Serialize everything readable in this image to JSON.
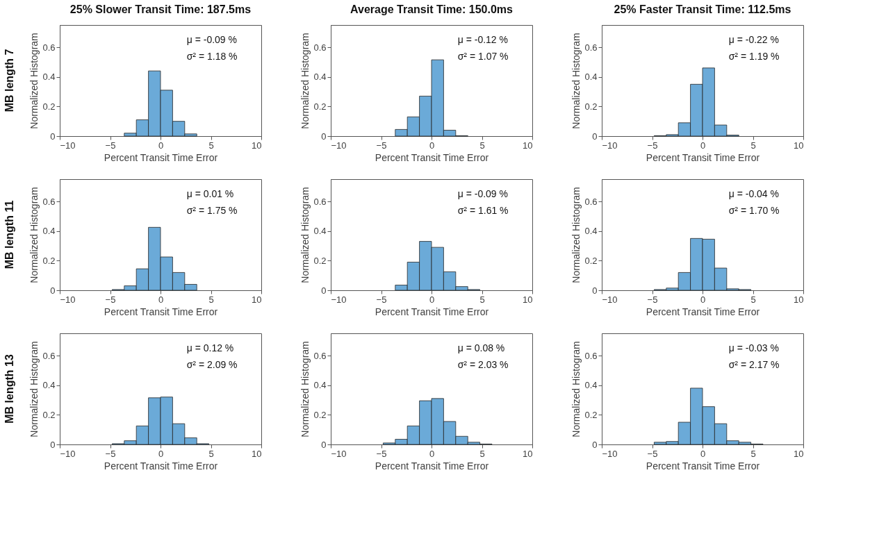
{
  "chart_data": [
    {
      "type": "histogram",
      "title": "25% Slower Transit Time: 187.5ms",
      "xlabel": "Percent Transit Time Error",
      "ylabel": "Normalized Histogram",
      "annotations": [
        "μ = -0.09 %",
        "σ² = 1.18 %",
        "MB length 7"
      ],
      "bins": [
        -3.6,
        -2.4,
        -1.2,
        0,
        1.2,
        2.4,
        3.6
      ],
      "values": [
        0.02,
        0.11,
        0.44,
        0.31,
        0.1,
        0.015
      ],
      "color": "#6baad8",
      "xlim": [
        -10,
        10
      ],
      "ylim": [
        0,
        0.75
      ],
      "xticks": [
        -10,
        -5,
        0,
        5,
        10
      ],
      "yticks": [
        0,
        0.2,
        0.4,
        0.6
      ]
    },
    {
      "type": "histogram",
      "title": "Average Transit Time: 150.0ms",
      "xlabel": "Percent Transit Time Error",
      "ylabel": "Normalized Histogram",
      "annotations": [
        "μ = -0.12 %",
        "σ² = 1.07 %"
      ],
      "bins": [
        -3.6,
        -2.4,
        -1.2,
        0,
        1.2,
        2.4,
        3.6
      ],
      "values": [
        0.045,
        0.13,
        0.27,
        0.515,
        0.04,
        0.003
      ],
      "color": "#6baad8",
      "xlim": [
        -10,
        10
      ],
      "ylim": [
        0,
        0.75
      ],
      "xticks": [
        -10,
        -5,
        0,
        5,
        10
      ],
      "yticks": [
        0,
        0.2,
        0.4,
        0.6
      ]
    },
    {
      "type": "histogram",
      "title": "25% Faster Transit Time: 112.5ms",
      "xlabel": "Percent Transit Time Error",
      "ylabel": "Normalized Histogram",
      "annotations": [
        "μ = -0.22 %",
        "σ² = 1.19 %"
      ],
      "bins": [
        -4.8,
        -3.6,
        -2.4,
        -1.2,
        0,
        1.2,
        2.4,
        3.6
      ],
      "values": [
        0.003,
        0.01,
        0.09,
        0.35,
        0.46,
        0.075,
        0.007
      ],
      "color": "#6baad8",
      "xlim": [
        -10,
        10
      ],
      "ylim": [
        0,
        0.75
      ],
      "xticks": [
        -10,
        -5,
        0,
        5,
        10
      ],
      "yticks": [
        0,
        0.2,
        0.4,
        0.6
      ]
    },
    {
      "type": "histogram",
      "xlabel": "Percent Transit Time Error",
      "ylabel": "Normalized Histogram",
      "annotations": [
        "μ = 0.01 %",
        "σ² = 1.75 %",
        "MB length 11"
      ],
      "bins": [
        -4.8,
        -3.6,
        -2.4,
        -1.2,
        0,
        1.2,
        2.4,
        3.6
      ],
      "values": [
        0.005,
        0.03,
        0.145,
        0.425,
        0.225,
        0.12,
        0.04
      ],
      "color": "#6baad8",
      "xlim": [
        -10,
        10
      ],
      "ylim": [
        0,
        0.75
      ],
      "xticks": [
        -10,
        -5,
        0,
        5,
        10
      ],
      "yticks": [
        0,
        0.2,
        0.4,
        0.6
      ]
    },
    {
      "type": "histogram",
      "xlabel": "Percent Transit Time Error",
      "ylabel": "Normalized Histogram",
      "annotations": [
        "μ = -0.09 %",
        "σ² = 1.61 %"
      ],
      "bins": [
        -3.6,
        -2.4,
        -1.2,
        0,
        1.2,
        2.4,
        3.6,
        4.8
      ],
      "values": [
        0.035,
        0.19,
        0.33,
        0.29,
        0.125,
        0.025,
        0.005
      ],
      "color": "#6baad8",
      "xlim": [
        -10,
        10
      ],
      "ylim": [
        0,
        0.75
      ],
      "xticks": [
        -10,
        -5,
        0,
        5,
        10
      ],
      "yticks": [
        0,
        0.2,
        0.4,
        0.6
      ]
    },
    {
      "type": "histogram",
      "xlabel": "Percent Transit Time Error",
      "ylabel": "Normalized Histogram",
      "annotations": [
        "μ = -0.04 %",
        "σ² = 1.70 %"
      ],
      "bins": [
        -4.8,
        -3.6,
        -2.4,
        -1.2,
        0,
        1.2,
        2.4,
        3.6,
        4.8
      ],
      "values": [
        0.005,
        0.015,
        0.12,
        0.35,
        0.345,
        0.15,
        0.01,
        0.005
      ],
      "color": "#6baad8",
      "xlim": [
        -10,
        10
      ],
      "ylim": [
        0,
        0.75
      ],
      "xticks": [
        -10,
        -5,
        0,
        5,
        10
      ],
      "yticks": [
        0,
        0.2,
        0.4,
        0.6
      ]
    },
    {
      "type": "histogram",
      "xlabel": "Percent Transit Time Error",
      "ylabel": "Normalized Histogram",
      "annotations": [
        "μ = 0.12 %",
        "σ² = 2.09 %",
        "MB length 13"
      ],
      "bins": [
        -4.8,
        -3.6,
        -2.4,
        -1.2,
        0,
        1.2,
        2.4,
        3.6,
        4.8
      ],
      "values": [
        0.005,
        0.025,
        0.125,
        0.315,
        0.32,
        0.14,
        0.045,
        0.005
      ],
      "color": "#6baad8",
      "xlim": [
        -10,
        10
      ],
      "ylim": [
        0,
        0.75
      ],
      "xticks": [
        -10,
        -5,
        0,
        5,
        10
      ],
      "yticks": [
        0,
        0.2,
        0.4,
        0.6
      ]
    },
    {
      "type": "histogram",
      "xlabel": "Percent Transit Time Error",
      "ylabel": "Normalized Histogram",
      "annotations": [
        "μ = 0.08 %",
        "σ² = 2.03 %"
      ],
      "bins": [
        -4.8,
        -3.6,
        -2.4,
        -1.2,
        0,
        1.2,
        2.4,
        3.6,
        4.8,
        6.0
      ],
      "values": [
        0.01,
        0.035,
        0.125,
        0.295,
        0.31,
        0.155,
        0.055,
        0.015,
        0.003
      ],
      "color": "#6baad8",
      "xlim": [
        -10,
        10
      ],
      "ylim": [
        0,
        0.75
      ],
      "xticks": [
        -10,
        -5,
        0,
        5,
        10
      ],
      "yticks": [
        0,
        0.2,
        0.4,
        0.6
      ]
    },
    {
      "type": "histogram",
      "xlabel": "Percent Transit Time Error",
      "ylabel": "Normalized Histogram",
      "annotations": [
        "μ = -0.03 %",
        "σ² = 2.17 %"
      ],
      "bins": [
        -4.8,
        -3.6,
        -2.4,
        -1.2,
        0,
        1.2,
        2.4,
        3.6,
        4.8,
        6.0
      ],
      "values": [
        0.015,
        0.02,
        0.15,
        0.38,
        0.255,
        0.14,
        0.025,
        0.015,
        0.003
      ],
      "color": "#6baad8",
      "xlim": [
        -10,
        10
      ],
      "ylim": [
        0,
        0.75
      ],
      "xticks": [
        -10,
        -5,
        0,
        5,
        10
      ],
      "yticks": [
        0,
        0.2,
        0.4,
        0.6
      ]
    }
  ]
}
